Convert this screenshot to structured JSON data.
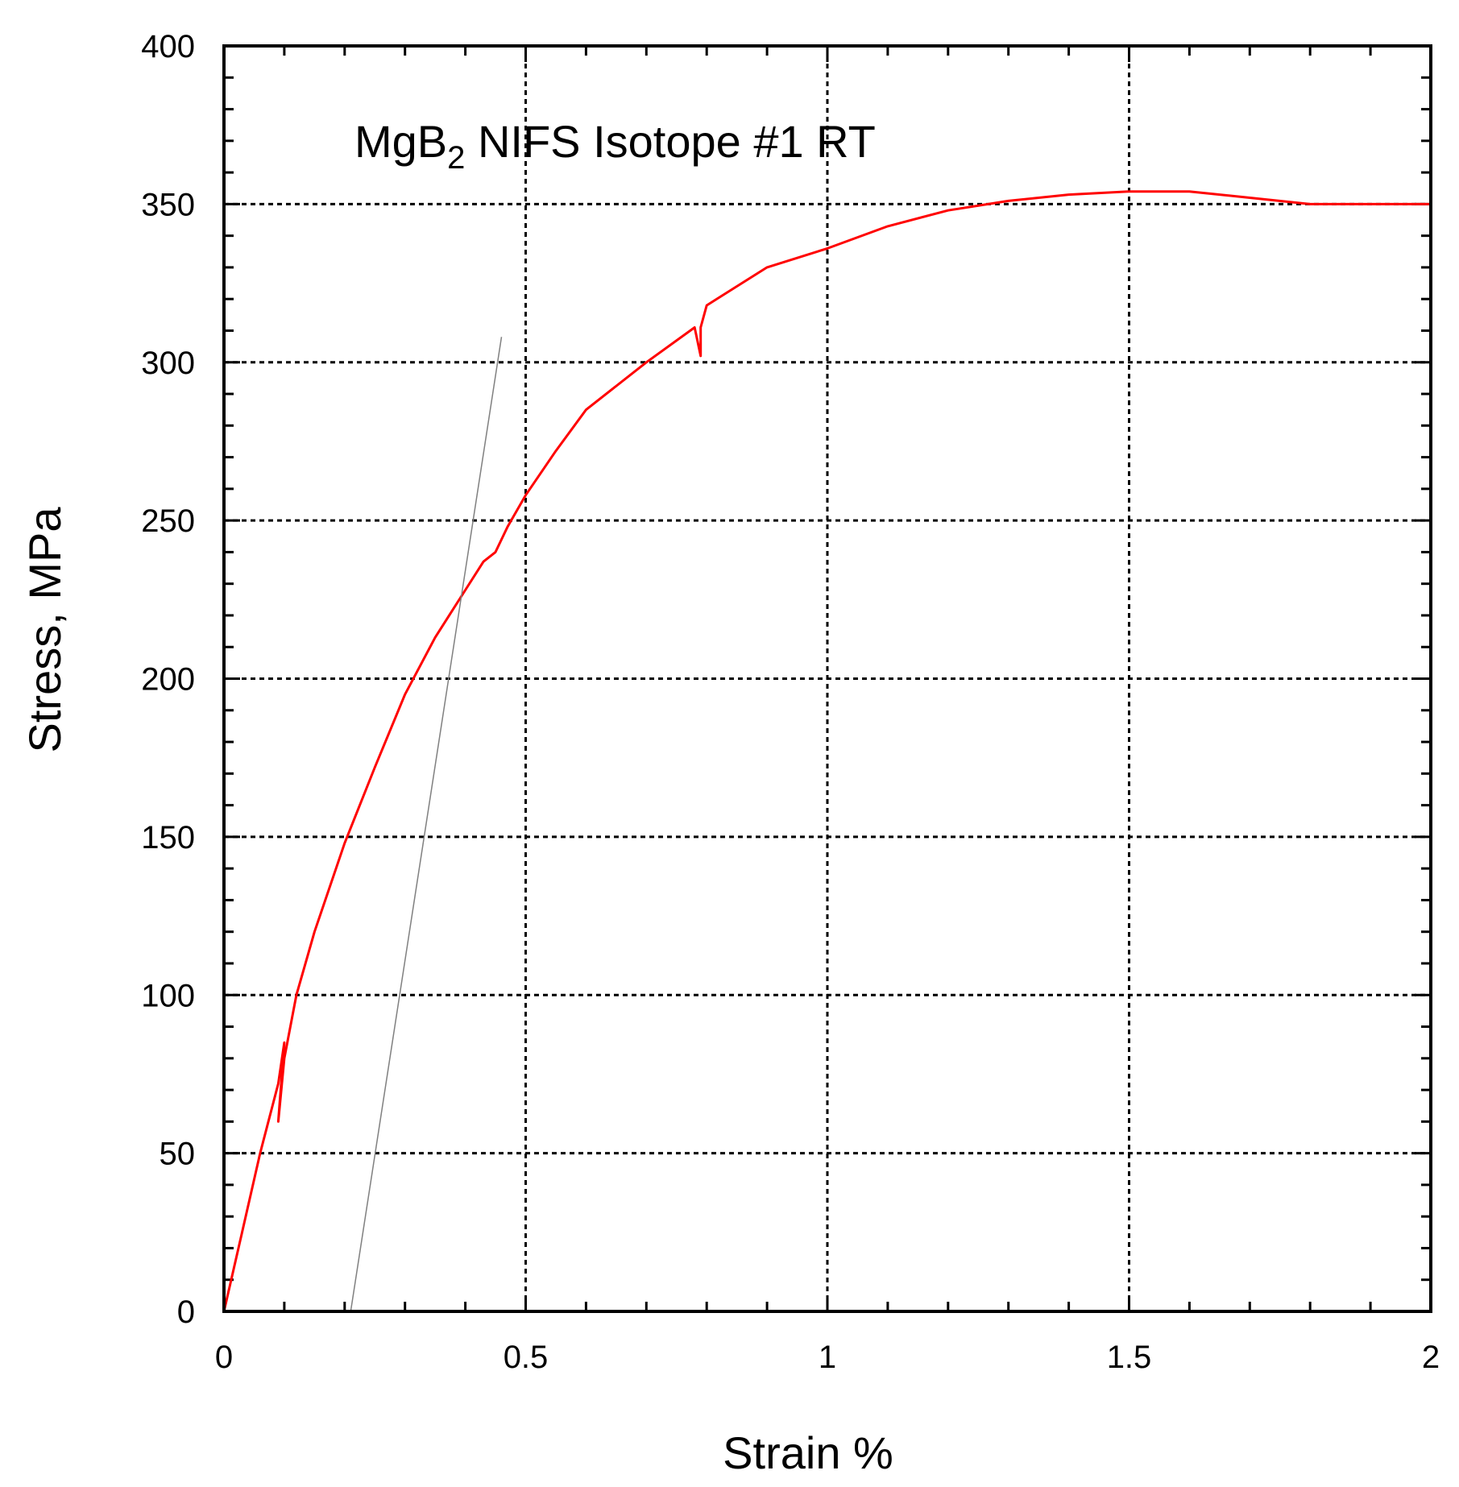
{
  "chart_data": {
    "type": "line",
    "title": "MgB",
    "title_subscript": "2",
    "title_rest": " NIFS Isotope #1 RT",
    "xlabel": "Strain %",
    "ylabel": "Stress, MPa",
    "xlim": [
      0,
      2
    ],
    "ylim": [
      0,
      400
    ],
    "x_ticks": [
      0,
      0.5,
      1,
      1.5,
      2
    ],
    "x_tick_labels": [
      "0",
      "0.5",
      "1",
      "1.5",
      "2"
    ],
    "y_ticks": [
      0,
      50,
      100,
      150,
      200,
      250,
      300,
      350,
      400
    ],
    "y_tick_labels": [
      "0",
      "50",
      "100",
      "150",
      "200",
      "250",
      "300",
      "350",
      "400"
    ],
    "grid": true,
    "series": [
      {
        "color": "#ff0000",
        "x": [
          0,
          0.03,
          0.06,
          0.09,
          0.1,
          0.09,
          0.1,
          0.12,
          0.15,
          0.2,
          0.25,
          0.3,
          0.35,
          0.4,
          0.43,
          0.45,
          0.47,
          0.5,
          0.55,
          0.6,
          0.7,
          0.78,
          0.79,
          0.79,
          0.8,
          0.9,
          1.0,
          1.1,
          1.2,
          1.3,
          1.4,
          1.5,
          1.55,
          1.6,
          1.7,
          1.8,
          1.9,
          2.0
        ],
        "y": [
          0,
          25,
          50,
          72,
          85,
          60,
          80,
          100,
          120,
          148,
          172,
          195,
          213,
          228,
          237,
          240,
          248,
          258,
          272,
          285,
          300,
          311,
          302,
          311,
          318,
          330,
          336,
          343,
          348,
          351,
          353,
          354,
          354,
          354,
          352,
          350,
          350,
          350
        ]
      },
      {
        "color": "#808080",
        "x": [
          0.21,
          0.46
        ],
        "y": [
          0,
          308
        ]
      }
    ]
  }
}
